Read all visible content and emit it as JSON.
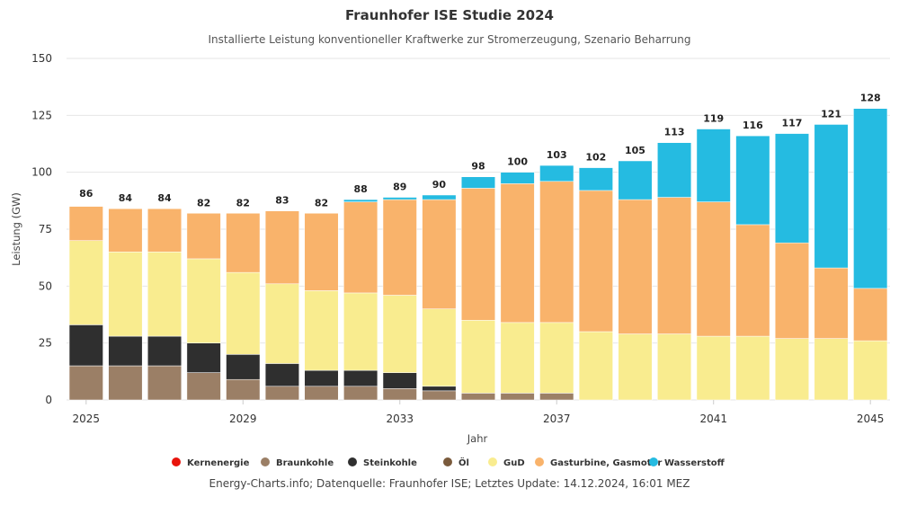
{
  "chart_data": {
    "type": "bar",
    "stacked": true,
    "title": "Fraunhofer ISE Studie 2024",
    "subtitle": "Installierte Leistung konventioneller Kraftwerke zur Stromerzeugung, Szenario Beharrung",
    "xlabel": "Jahr",
    "ylabel": "Leistung (GW)",
    "ylim": [
      0,
      150
    ],
    "yticks": [
      0,
      25,
      50,
      75,
      100,
      125,
      150
    ],
    "categories": [
      "2025",
      "2026",
      "2027",
      "2028",
      "2029",
      "2030",
      "2031",
      "2032",
      "2033",
      "2034",
      "2035",
      "2036",
      "2037",
      "2038",
      "2039",
      "2040",
      "2041",
      "2042",
      "2043",
      "2044",
      "2045"
    ],
    "xtick_labels": [
      "2025",
      "2029",
      "2033",
      "2037",
      "2041",
      "2045"
    ],
    "totals": [
      86,
      84,
      84,
      82,
      82,
      83,
      82,
      88,
      89,
      90,
      98,
      100,
      103,
      102,
      105,
      113,
      119,
      116,
      117,
      121,
      128
    ],
    "series": [
      {
        "name": "Kernenergie",
        "color": "#e8140c",
        "values": [
          0,
          0,
          0,
          0,
          0,
          0,
          0,
          0,
          0,
          0,
          0,
          0,
          0,
          0,
          0,
          0,
          0,
          0,
          0,
          0,
          0
        ]
      },
      {
        "name": "Braunkohle",
        "color": "#9b7f66",
        "values": [
          15,
          15,
          15,
          12,
          9,
          6,
          6,
          6,
          5,
          4,
          3,
          3,
          3,
          0,
          0,
          0,
          0,
          0,
          0,
          0,
          0
        ]
      },
      {
        "name": "Steinkohle",
        "color": "#2f2f2f",
        "values": [
          18,
          13,
          13,
          13,
          11,
          10,
          7,
          7,
          7,
          2,
          0,
          0,
          0,
          0,
          0,
          0,
          0,
          0,
          0,
          0,
          0
        ]
      },
      {
        "name": "Öl",
        "color": "#7a5a3c",
        "values": [
          0,
          0,
          0,
          0,
          0,
          0,
          0,
          0,
          0,
          0,
          0,
          0,
          0,
          0,
          0,
          0,
          0,
          0,
          0,
          0,
          0
        ]
      },
      {
        "name": "GuD",
        "color": "#f9ec8f",
        "values": [
          37,
          37,
          37,
          37,
          36,
          35,
          35,
          34,
          34,
          34,
          32,
          31,
          31,
          30,
          29,
          29,
          28,
          28,
          27,
          27,
          26
        ]
      },
      {
        "name": "Gasturbine, Gasmotor",
        "color": "#f9b36b",
        "values": [
          15,
          19,
          19,
          20,
          26,
          32,
          34,
          40,
          42,
          48,
          58,
          61,
          62,
          62,
          59,
          60,
          59,
          49,
          42,
          31,
          23
        ]
      },
      {
        "name": "Wasserstoff",
        "color": "#25bbe1",
        "values": [
          0,
          0,
          0,
          0,
          0,
          0,
          0,
          1,
          1,
          2,
          5,
          5,
          7,
          10,
          17,
          24,
          32,
          39,
          48,
          63,
          79
        ]
      }
    ]
  },
  "credits": "Energy-Charts.info; Datenquelle: Fraunhofer ISE; Letztes Update: 14.12.2024, 16:01 MEZ"
}
